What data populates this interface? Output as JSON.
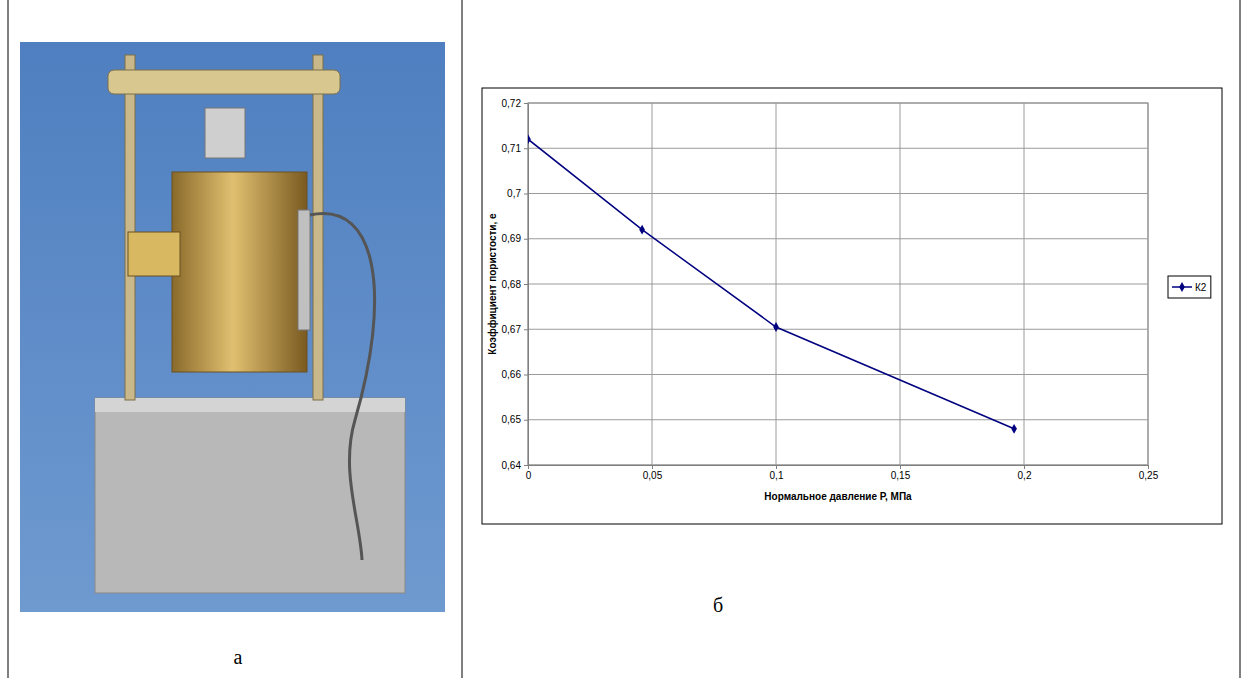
{
  "chart_data": {
    "type": "line",
    "x_label": "Нормальное давление Р, МПа",
    "y_label": "Коэффициент пористости, е",
    "x": [
      0,
      0.046,
      0.1,
      0.196
    ],
    "series": [
      {
        "name": "К2",
        "color": "#000080",
        "marker": "diamond",
        "values": [
          0.712,
          0.692,
          0.6705,
          0.648
        ]
      }
    ],
    "xlim": [
      0,
      0.25
    ],
    "xticks": [
      0,
      {
        "value": 0.05,
        "label": "0,05"
      },
      {
        "value": 0.1,
        "label": "0,1"
      },
      {
        "value": 0.15,
        "label": "0,15"
      },
      {
        "value": 0.2,
        "label": "0,2"
      },
      {
        "value": 0.25,
        "label": "0,25"
      }
    ],
    "ylim": [
      0.64,
      0.72
    ],
    "yticks": [
      {
        "value": 0.64,
        "label": "0,64"
      },
      {
        "value": 0.65,
        "label": "0,65"
      },
      {
        "value": 0.66,
        "label": "0,66"
      },
      {
        "value": 0.67,
        "label": "0,67"
      },
      {
        "value": 0.68,
        "label": "0,68"
      },
      {
        "value": 0.69,
        "label": "0,69"
      },
      {
        "value": 0.7,
        "label": "0,7"
      },
      {
        "value": 0.71,
        "label": "0,71"
      },
      {
        "value": 0.72,
        "label": "0,72"
      }
    ],
    "grid": true,
    "legend": "right"
  },
  "panels": {
    "photo_label": "а",
    "chart_label": "б"
  }
}
